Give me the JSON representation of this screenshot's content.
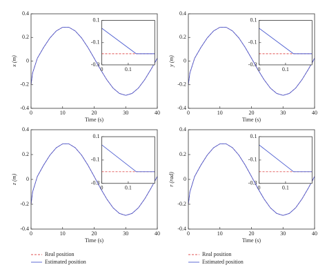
{
  "chart_data": [
    {
      "type": "line",
      "ylabel": "x (m)",
      "xlabel": "Time (s)",
      "xlim": [
        0,
        40
      ],
      "ylim": [
        -0.4,
        0.4
      ],
      "xticks": [
        0,
        10,
        20,
        30,
        40
      ],
      "yticks": [
        -0.4,
        -0.2,
        0,
        0.2,
        0.4
      ],
      "x": [
        0,
        0.5,
        2,
        4,
        6,
        8,
        10,
        12,
        14,
        16,
        18,
        20,
        22,
        24,
        26,
        28,
        30,
        32,
        34,
        36,
        38,
        40
      ],
      "series": [
        {
          "name": "Real position",
          "color": "#e05050",
          "dashed": true,
          "values": [
            -0.2,
            -0.1,
            0.024,
            0.116,
            0.196,
            0.255,
            0.286,
            0.286,
            0.255,
            0.196,
            0.116,
            0.024,
            -0.071,
            -0.158,
            -0.229,
            -0.274,
            -0.29,
            -0.274,
            -0.229,
            -0.158,
            -0.071,
            0.024
          ]
        },
        {
          "name": "Estimated position",
          "color": "#4a5bd0",
          "dashed": false,
          "values": [
            -0.2,
            -0.1,
            0.024,
            0.116,
            0.196,
            0.255,
            0.286,
            0.286,
            0.255,
            0.196,
            0.116,
            0.024,
            -0.071,
            -0.158,
            -0.229,
            -0.274,
            -0.29,
            -0.274,
            -0.229,
            -0.158,
            -0.071,
            0.024
          ]
        }
      ],
      "inset": {
        "xlim": [
          0,
          0.2
        ],
        "ylim": [
          -0.3,
          0.1
        ],
        "xticks": [
          0,
          0.1
        ],
        "yticks": [
          -0.3,
          -0.1,
          0.1
        ],
        "x": [
          0,
          0.13,
          0.2
        ],
        "series": [
          {
            "color": "#e05050",
            "dashed": true,
            "values": [
              -0.2,
              -0.2,
              -0.2
            ]
          },
          {
            "color": "#4a5bd0",
            "dashed": false,
            "values": [
              0.03,
              -0.2,
              -0.2
            ]
          }
        ]
      }
    },
    {
      "type": "line",
      "ylabel": "y (m)",
      "xlabel": "Time (s)",
      "xlim": [
        0,
        40
      ],
      "ylim": [
        -0.4,
        0.4
      ],
      "xticks": [
        0,
        10,
        20,
        30,
        40
      ],
      "yticks": [
        -0.4,
        -0.2,
        0,
        0.2,
        0.4
      ],
      "x": [
        0,
        0.5,
        2,
        4,
        6,
        8,
        10,
        12,
        14,
        16,
        18,
        20,
        22,
        24,
        26,
        28,
        30,
        32,
        34,
        36,
        38,
        40
      ],
      "series": [
        {
          "name": "Real position",
          "color": "#e05050",
          "dashed": true,
          "values": [
            -0.2,
            -0.1,
            0.024,
            0.116,
            0.196,
            0.255,
            0.286,
            0.286,
            0.255,
            0.196,
            0.116,
            0.024,
            -0.071,
            -0.158,
            -0.229,
            -0.274,
            -0.29,
            -0.274,
            -0.229,
            -0.158,
            -0.071,
            0.024
          ]
        },
        {
          "name": "Estimated position",
          "color": "#4a5bd0",
          "dashed": false,
          "values": [
            -0.2,
            -0.1,
            0.024,
            0.116,
            0.196,
            0.255,
            0.286,
            0.286,
            0.255,
            0.196,
            0.116,
            0.024,
            -0.071,
            -0.158,
            -0.229,
            -0.274,
            -0.29,
            -0.274,
            -0.229,
            -0.158,
            -0.071,
            0.024
          ]
        }
      ],
      "inset": {
        "xlim": [
          0,
          0.2
        ],
        "ylim": [
          -0.3,
          0.1
        ],
        "xticks": [
          0,
          0.1
        ],
        "yticks": [
          -0.3,
          -0.1,
          0.1
        ],
        "x": [
          0,
          0.13,
          0.2
        ],
        "series": [
          {
            "color": "#e05050",
            "dashed": true,
            "values": [
              -0.2,
              -0.2,
              -0.2
            ]
          },
          {
            "color": "#4a5bd0",
            "dashed": false,
            "values": [
              0.03,
              -0.2,
              -0.2
            ]
          }
        ]
      }
    },
    {
      "type": "line",
      "ylabel": "z (m)",
      "xlabel": "Time (s)",
      "xlim": [
        0,
        40
      ],
      "ylim": [
        -0.4,
        0.4
      ],
      "xticks": [
        0,
        10,
        20,
        30,
        40
      ],
      "yticks": [
        -0.4,
        -0.2,
        0,
        0.2,
        0.4
      ],
      "x": [
        0,
        0.5,
        2,
        4,
        6,
        8,
        10,
        12,
        14,
        16,
        18,
        20,
        22,
        24,
        26,
        28,
        30,
        32,
        34,
        36,
        38,
        40
      ],
      "series": [
        {
          "name": "Real position",
          "color": "#e05050",
          "dashed": true,
          "values": [
            -0.2,
            -0.1,
            0.024,
            0.116,
            0.196,
            0.255,
            0.286,
            0.286,
            0.255,
            0.196,
            0.116,
            0.024,
            -0.071,
            -0.158,
            -0.229,
            -0.274,
            -0.29,
            -0.274,
            -0.229,
            -0.158,
            -0.071,
            0.024
          ]
        },
        {
          "name": "Estimated position",
          "color": "#4a5bd0",
          "dashed": false,
          "values": [
            -0.2,
            -0.1,
            0.024,
            0.116,
            0.196,
            0.255,
            0.286,
            0.286,
            0.255,
            0.196,
            0.116,
            0.024,
            -0.071,
            -0.158,
            -0.229,
            -0.274,
            -0.29,
            -0.274,
            -0.229,
            -0.158,
            -0.071,
            0.024
          ]
        }
      ],
      "inset": {
        "xlim": [
          0,
          0.2
        ],
        "ylim": [
          -0.3,
          0.1
        ],
        "xticks": [
          0,
          0.1
        ],
        "yticks": [
          -0.3,
          -0.1,
          0.1
        ],
        "x": [
          0,
          0.13,
          0.2
        ],
        "series": [
          {
            "color": "#e05050",
            "dashed": true,
            "values": [
              -0.2,
              -0.2,
              -0.2
            ]
          },
          {
            "color": "#4a5bd0",
            "dashed": false,
            "values": [
              0.03,
              -0.2,
              -0.2
            ]
          }
        ]
      }
    },
    {
      "type": "line",
      "ylabel": "r (rad)",
      "xlabel": "Time (s)",
      "xlim": [
        0,
        40
      ],
      "ylim": [
        -0.4,
        0.4
      ],
      "xticks": [
        0,
        10,
        20,
        30,
        40
      ],
      "yticks": [
        -0.4,
        -0.2,
        0,
        0.2,
        0.4
      ],
      "x": [
        0,
        0.5,
        2,
        4,
        6,
        8,
        10,
        12,
        14,
        16,
        18,
        20,
        22,
        24,
        26,
        28,
        30,
        32,
        34,
        36,
        38,
        40
      ],
      "series": [
        {
          "name": "Real position",
          "color": "#e05050",
          "dashed": true,
          "values": [
            -0.2,
            -0.1,
            0.024,
            0.116,
            0.196,
            0.255,
            0.286,
            0.286,
            0.255,
            0.196,
            0.116,
            0.024,
            -0.071,
            -0.158,
            -0.229,
            -0.274,
            -0.29,
            -0.274,
            -0.229,
            -0.158,
            -0.071,
            0.024
          ]
        },
        {
          "name": "Estimated position",
          "color": "#4a5bd0",
          "dashed": false,
          "values": [
            -0.2,
            -0.1,
            0.024,
            0.116,
            0.196,
            0.255,
            0.286,
            0.286,
            0.255,
            0.196,
            0.116,
            0.024,
            -0.071,
            -0.158,
            -0.229,
            -0.274,
            -0.29,
            -0.274,
            -0.229,
            -0.158,
            -0.071,
            0.024
          ]
        }
      ],
      "inset": {
        "xlim": [
          0,
          0.2
        ],
        "ylim": [
          -0.3,
          0.1
        ],
        "xticks": [
          0,
          0.1
        ],
        "yticks": [
          -0.3,
          -0.1,
          0.1
        ],
        "x": [
          0,
          0.13,
          0.2
        ],
        "series": [
          {
            "color": "#e05050",
            "dashed": true,
            "values": [
              -0.2,
              -0.2,
              -0.2
            ]
          },
          {
            "color": "#4a5bd0",
            "dashed": false,
            "values": [
              0.03,
              -0.2,
              -0.2
            ]
          }
        ]
      }
    }
  ]
}
